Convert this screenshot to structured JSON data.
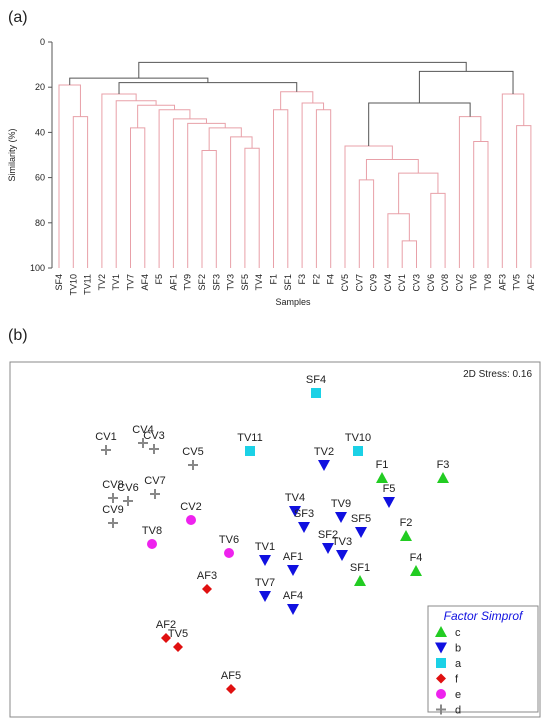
{
  "chart_data": [
    {
      "type": "dendrogram",
      "panel_label": "(a)",
      "y_label": "Similarity (%)",
      "x_label": "Samples",
      "ylim": [
        0,
        100
      ],
      "y_inverted": true,
      "yticks": [
        0,
        20,
        40,
        60,
        80,
        100
      ],
      "tree": {
        "height": 9,
        "color": "#555555",
        "children": [
          {
            "height": 16,
            "color": "#555555",
            "children": [
              {
                "height": 19,
                "color": "#e8a0a8",
                "children": [
                  "SF4",
                  {
                    "height": 33,
                    "color": "#e8a0a8",
                    "children": [
                      "TV10",
                      "TV11"
                    ]
                  }
                ]
              },
              {
                "height": 18,
                "color": "#555555",
                "children": [
                  {
                    "height": 23,
                    "color": "#e8a0a8",
                    "children": [
                      "TV2",
                      {
                        "height": 26,
                        "color": "#e8a0a8",
                        "children": [
                          "TV1",
                          {
                            "height": 28,
                            "color": "#e8a0a8",
                            "children": [
                              {
                                "height": 38,
                                "color": "#e8a0a8",
                                "children": [
                                  "TV7",
                                  "AF4"
                                ]
                              },
                              {
                                "height": 30,
                                "color": "#e8a0a8",
                                "children": [
                                  "F5",
                                  {
                                    "height": 34,
                                    "color": "#e8a0a8",
                                    "children": [
                                      "AF1",
                                      {
                                        "height": 36,
                                        "color": "#e8a0a8",
                                        "children": [
                                          "TV9",
                                          {
                                            "height": 38,
                                            "color": "#e8a0a8",
                                            "children": [
                                              {
                                                "height": 48,
                                                "color": "#e8a0a8",
                                                "children": [
                                                  "SF2",
                                                  "SF3"
                                                ]
                                              },
                                              {
                                                "height": 42,
                                                "color": "#e8a0a8",
                                                "children": [
                                                  "TV3",
                                                  {
                                                    "height": 47,
                                                    "color": "#e8a0a8",
                                                    "children": [
                                                      "SF5",
                                                      "TV4"
                                                    ]
                                                  }
                                                ]
                                              }
                                            ]
                                          }
                                        ]
                                      }
                                    ]
                                  }
                                ]
                              }
                            ]
                          }
                        ]
                      }
                    ]
                  },
                  {
                    "height": 22,
                    "color": "#e8a0a8",
                    "children": [
                      {
                        "height": 30,
                        "color": "#e8a0a8",
                        "children": [
                          "F1",
                          "SF1"
                        ]
                      },
                      {
                        "height": 27,
                        "color": "#e8a0a8",
                        "children": [
                          "F3",
                          {
                            "height": 30,
                            "color": "#e8a0a8",
                            "children": [
                              "F2",
                              "F4"
                            ]
                          }
                        ]
                      }
                    ]
                  }
                ]
              }
            ]
          },
          {
            "height": 13,
            "color": "#555555",
            "children": [
              {
                "height": 27,
                "color": "#555555",
                "children": [
                  {
                    "height": 46,
                    "color": "#e8a0a8",
                    "children": [
                      "CV5",
                      {
                        "height": 52,
                        "color": "#e8a0a8",
                        "children": [
                          {
                            "height": 61,
                            "color": "#e8a0a8",
                            "children": [
                              "CV7",
                              "CV9"
                            ]
                          },
                          {
                            "height": 58,
                            "color": "#e8a0a8",
                            "children": [
                              {
                                "height": 76,
                                "color": "#e8a0a8",
                                "children": [
                                  "CV4",
                                  {
                                    "height": 88,
                                    "color": "#e8a0a8",
                                    "children": [
                                      "CV1",
                                      "CV3"
                                    ]
                                  }
                                ]
                              },
                              {
                                "height": 67,
                                "color": "#e8a0a8",
                                "children": [
                                  "CV6",
                                  "CV8"
                                ]
                              }
                            ]
                          }
                        ]
                      }
                    ]
                  },
                  {
                    "height": 33,
                    "color": "#e8a0a8",
                    "children": [
                      "CV2",
                      {
                        "height": 44,
                        "color": "#e8a0a8",
                        "children": [
                          "TV6",
                          "TV8"
                        ]
                      }
                    ]
                  }
                ]
              },
              {
                "height": 23,
                "color": "#e8a0a8",
                "children": [
                  "AF3",
                  {
                    "height": 37,
                    "color": "#e8a0a8",
                    "children": [
                      "TV5",
                      "AF2"
                    ]
                  }
                ]
              }
            ]
          }
        ]
      }
    },
    {
      "type": "scatter",
      "panel_label": "(b)",
      "annotation": "2D Stress: 0.16",
      "legend_title": "Factor Simprof",
      "legend": "bottom-right",
      "series": [
        {
          "name": "c",
          "color": "#22cc22",
          "marker": "triangle-up",
          "labels": [
            "F1",
            "F3",
            "F2",
            "F4",
            "SF1"
          ],
          "x": [
            1.02,
            1.63,
            1.26,
            1.36,
            0.8
          ],
          "y": [
            -0.98,
            -0.98,
            -1.56,
            -1.91,
            -2.01
          ]
        },
        {
          "name": "b",
          "color": "#1010e0",
          "marker": "triangle-down",
          "labels": [
            "TV2",
            "F5",
            "TV4",
            "TV9",
            "SF3",
            "SF5",
            "SF2",
            "TV3",
            "TV1",
            "AF1",
            "TV7",
            "AF4"
          ],
          "x": [
            0.44,
            1.09,
            0.15,
            0.61,
            0.24,
            0.81,
            0.48,
            0.62,
            -0.15,
            0.13,
            -0.15,
            0.13
          ],
          "y": [
            -0.85,
            -1.22,
            -1.31,
            -1.37,
            -1.47,
            -1.52,
            -1.68,
            -1.75,
            -1.8,
            -1.9,
            -2.16,
            -2.29
          ]
        },
        {
          "name": "a",
          "color": "#1bd1e6",
          "marker": "square",
          "labels": [
            "SF4",
            "TV11",
            "TV10"
          ],
          "x": [
            0.36,
            -0.3,
            0.78
          ],
          "y": [
            -0.13,
            -0.71,
            -0.71
          ]
        },
        {
          "name": "f",
          "color": "#e01010",
          "marker": "diamond",
          "labels": [
            "AF3",
            "AF2",
            "TV5",
            "AF5"
          ],
          "x": [
            -0.73,
            -1.14,
            -1.02,
            -0.49
          ],
          "y": [
            -2.09,
            -2.58,
            -2.67,
            -3.09
          ]
        },
        {
          "name": "e",
          "color": "#ee22ee",
          "marker": "circle",
          "labels": [
            "CV2",
            "TV8",
            "TV6"
          ],
          "x": [
            -0.89,
            -1.28,
            -0.51
          ],
          "y": [
            -1.4,
            -1.64,
            -1.73
          ]
        },
        {
          "name": "d",
          "color": "#888888",
          "marker": "plus",
          "labels": [
            "CV1",
            "CV4",
            "CV3",
            "CV5",
            "CV8",
            "CV6",
            "CV7",
            "CV9"
          ],
          "x": [
            -1.74,
            -1.37,
            -1.26,
            -0.87,
            -1.67,
            -1.52,
            -1.25,
            -1.67
          ],
          "y": [
            -0.7,
            -0.63,
            -0.69,
            -0.85,
            -1.18,
            -1.21,
            -1.14,
            -1.43
          ]
        }
      ]
    }
  ]
}
